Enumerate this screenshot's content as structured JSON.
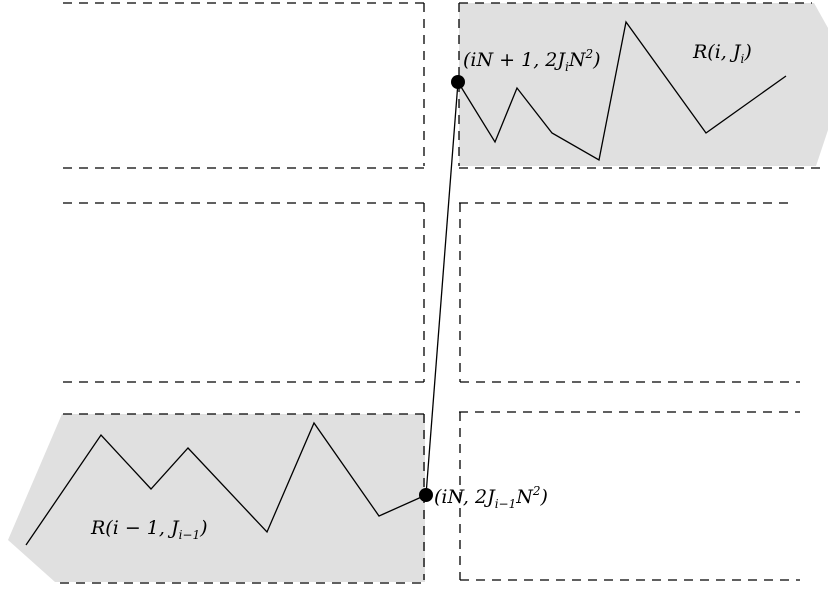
{
  "labels": {
    "region_top": {
      "base": "R(i, J",
      "sub": "i",
      "close": ")"
    },
    "region_bottom": {
      "base": "R(i − 1, J",
      "sub": "i−1",
      "close": ")"
    },
    "point_top": {
      "base": "(iN + 1, 2J",
      "sub": "i",
      "mid": "N",
      "sup": "2",
      "close": ")"
    },
    "point_bottom": {
      "base": "(iN, 2J",
      "sub": "i−1",
      "mid": "N",
      "sup": "2",
      "close": ")"
    }
  },
  "colors": {
    "shade": "#e0e0e0",
    "line": "#000000"
  }
}
